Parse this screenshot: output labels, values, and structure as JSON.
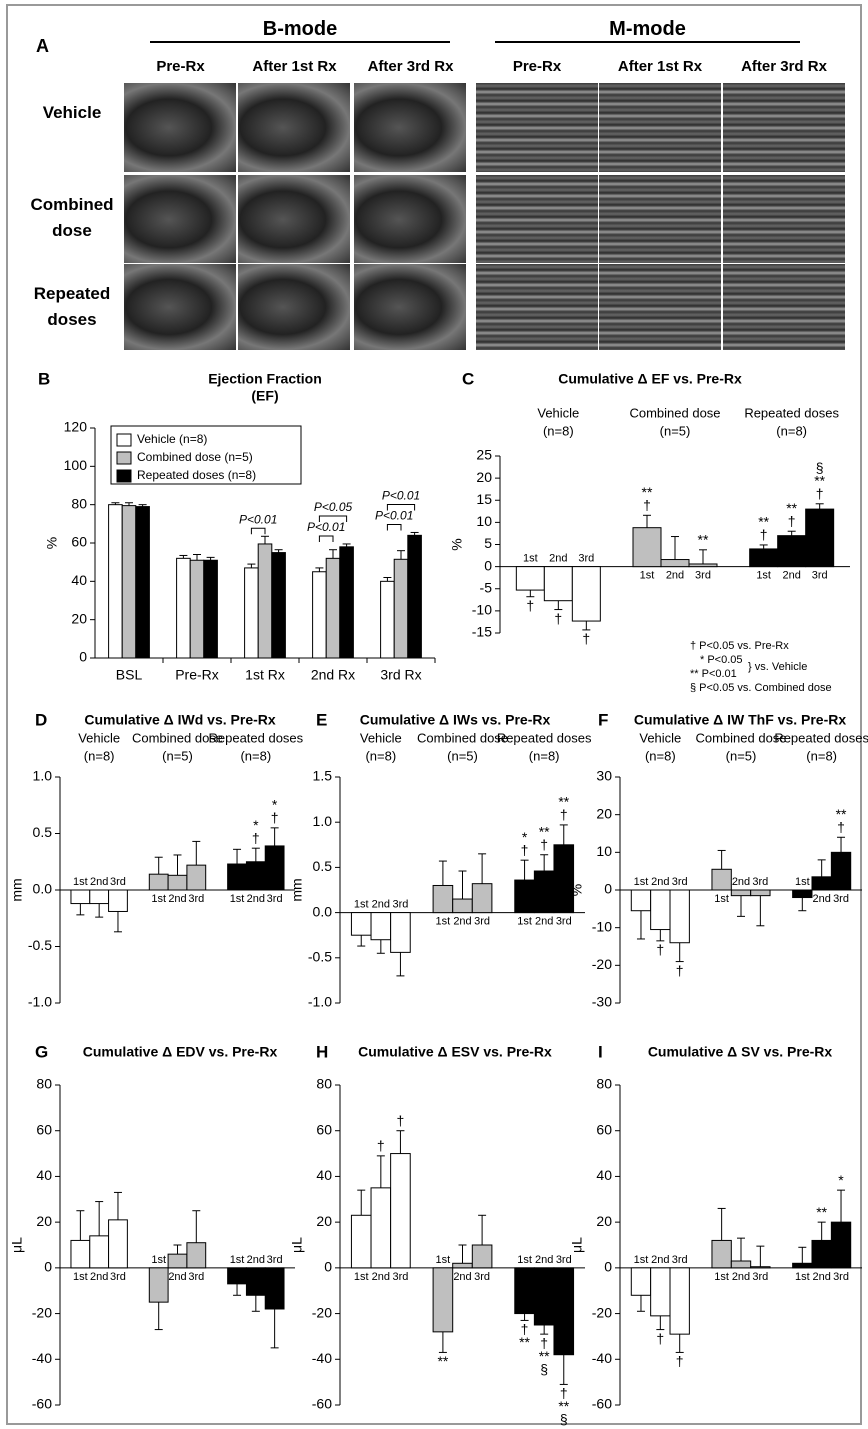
{
  "panel_a": {
    "panel": "A",
    "b_mode": "B-mode",
    "m_mode": "M-mode",
    "columns": [
      "Pre-Rx",
      "After 1st Rx",
      "After 3rd Rx"
    ],
    "rows": [
      "Vehicle",
      "Combined dose",
      "Repeated doses"
    ]
  },
  "chart_data": [
    {
      "type": "bar",
      "panel": "B",
      "title": "Ejection Fraction",
      "subtitle": "(EF)",
      "ylabel": "%",
      "categories": [
        "BSL",
        "Pre-Rx",
        "1st Rx",
        "2nd Rx",
        "3rd Rx"
      ],
      "ylim": [
        0,
        120
      ],
      "yticks": [
        0,
        20,
        40,
        60,
        80,
        100,
        120
      ],
      "legend": "upper left",
      "series": [
        {
          "name": "Vehicle (n=8)",
          "color": "#ffffff",
          "values": [
            80,
            52,
            47,
            45,
            40
          ],
          "errors": [
            1,
            1.5,
            2,
            2,
            2
          ]
        },
        {
          "name": "Combined dose (n=5)",
          "color": "#bfbfbf",
          "values": [
            79.5,
            51,
            59.5,
            52,
            51.5
          ],
          "errors": [
            1.5,
            3,
            4,
            4.5,
            4.5
          ]
        },
        {
          "name": "Repeated doses (n=8)",
          "color": "#000000",
          "values": [
            79,
            51,
            55,
            58,
            64
          ],
          "errors": [
            1,
            1.5,
            1.5,
            1.5,
            1.5
          ]
        }
      ],
      "brackets": [
        [],
        [],
        [
          {
            "label": "P<0.01",
            "series": [
              "Vehicle (n=8)",
              "Combined dose (n=5)"
            ]
          }
        ],
        [
          {
            "label": "P<0.01",
            "series": [
              "Vehicle (n=8)",
              "Combined dose (n=5)"
            ]
          },
          {
            "label": "P<0.05",
            "series": [
              "Vehicle (n=8)",
              "Repeated doses (n=8)"
            ]
          }
        ],
        [
          {
            "label": "P<0.01",
            "series": [
              "Vehicle (n=8)",
              "Combined dose (n=5)"
            ]
          },
          {
            "label": "P<0.01",
            "series": [
              "Vehicle (n=8)",
              "Repeated doses (n=8)"
            ]
          }
        ]
      ]
    },
    {
      "type": "group_bar",
      "panel": "C",
      "title": "Cumulative Δ EF vs. Pre-Rx",
      "ylabel": "%",
      "ylim": [
        -15,
        25
      ],
      "yticks": [
        -15,
        -10,
        -5,
        0,
        5,
        10,
        15,
        20,
        25
      ],
      "bar_labels": [
        "1st",
        "2nd",
        "3rd"
      ],
      "series": [
        {
          "name": "Vehicle",
          "note": "(n=8)",
          "color": "#ffffff",
          "values": [
            -5.3,
            -7.7,
            -12.3
          ],
          "errors": [
            1.5,
            2,
            2
          ],
          "marks": [
            [
              "†"
            ],
            [
              "†"
            ],
            [
              "†"
            ]
          ]
        },
        {
          "name": "Combined dose",
          "note": "(n=5)",
          "color": "#bfbfbf",
          "values": [
            8.8,
            1.6,
            0.6
          ],
          "errors": [
            2.8,
            5.2,
            3.2
          ],
          "marks": [
            [
              "**",
              "†"
            ],
            null,
            [
              "**"
            ]
          ]
        },
        {
          "name": "Repeated doses",
          "note": "(n=8)",
          "color": "#000000",
          "values": [
            4,
            7,
            13
          ],
          "errors": [
            0.9,
            1,
            1.2
          ],
          "marks": [
            [
              "**",
              "†"
            ],
            [
              "**",
              "†"
            ],
            [
              "§",
              "**",
              "†"
            ]
          ]
        }
      ],
      "notes": [
        "† P<0.05 vs. Pre-Rx",
        "* P<0.05",
        "** P<0.01",
        "} vs. Vehicle",
        "§ P<0.05 vs. Combined dose"
      ]
    },
    {
      "type": "group_bar",
      "panel": "D",
      "title": "Cumulative Δ IWd vs. Pre-Rx",
      "ylabel": "mm",
      "ylim": [
        -1,
        1
      ],
      "yticks": [
        {
          "value": -1,
          "label": "-1.0"
        },
        -0.5,
        {
          "value": 0,
          "label": "0.0"
        },
        0.5,
        {
          "value": 1,
          "label": "1.0"
        }
      ],
      "bar_labels": [
        "1st",
        "2nd",
        "3rd"
      ],
      "series": [
        {
          "name": "Vehicle",
          "note": "(n=8)",
          "color": "#ffffff",
          "values": [
            -0.12,
            -0.12,
            -0.19
          ],
          "errors": [
            0.1,
            0.12,
            0.18
          ],
          "marks": [
            null,
            null,
            null
          ]
        },
        {
          "name": "Combined dose",
          "note": "(n=5)",
          "color": "#bfbfbf",
          "values": [
            0.14,
            0.13,
            0.22
          ],
          "errors": [
            0.15,
            0.18,
            0.21
          ],
          "marks": [
            null,
            null,
            null
          ]
        },
        {
          "name": "Repeated doses",
          "note": "(n=8)",
          "color": "#000000",
          "values": [
            0.23,
            0.25,
            0.39
          ],
          "errors": [
            0.13,
            0.12,
            0.16
          ],
          "marks": [
            null,
            [
              "*",
              "†"
            ],
            [
              "*",
              "†"
            ]
          ]
        }
      ]
    },
    {
      "type": "group_bar",
      "panel": "E",
      "title": "Cumulative Δ IWs vs. Pre-Rx",
      "ylabel": "mm",
      "ylim": [
        -1,
        1.5
      ],
      "yticks": [
        {
          "value": -1,
          "label": "-1.0"
        },
        -0.5,
        {
          "value": 0,
          "label": "0.0"
        },
        0.5,
        {
          "value": 1,
          "label": "1.0"
        },
        1.5
      ],
      "bar_labels": [
        "1st",
        "2nd",
        "3rd"
      ],
      "series": [
        {
          "name": "Vehicle",
          "note": "(n=8)",
          "color": "#ffffff",
          "values": [
            -0.25,
            -0.3,
            -0.44
          ],
          "errors": [
            0.12,
            0.15,
            0.26
          ],
          "marks": [
            null,
            null,
            null
          ]
        },
        {
          "name": "Combined dose",
          "note": "(n=5)",
          "color": "#bfbfbf",
          "values": [
            0.3,
            0.15,
            0.32
          ],
          "errors": [
            0.27,
            0.31,
            0.33
          ],
          "marks": [
            null,
            null,
            null
          ]
        },
        {
          "name": "Repeated doses",
          "note": "(n=8)",
          "color": "#000000",
          "values": [
            0.36,
            0.46,
            0.75
          ],
          "errors": [
            0.22,
            0.18,
            0.22
          ],
          "marks": [
            [
              "*",
              "†"
            ],
            [
              "**",
              "†"
            ],
            [
              "**",
              "†"
            ]
          ]
        }
      ]
    },
    {
      "type": "group_bar",
      "panel": "F",
      "title": "Cumulative Δ IW ThF vs. Pre-Rx",
      "ylabel": "%",
      "ylim": [
        -30,
        30
      ],
      "yticks": [
        -30,
        -20,
        -10,
        0,
        10,
        20,
        30
      ],
      "bar_labels": [
        "1st",
        "2nd",
        "3rd"
      ],
      "series": [
        {
          "name": "Vehicle",
          "note": "(n=8)",
          "color": "#ffffff",
          "values": [
            -5.5,
            -10.5,
            -14
          ],
          "errors": [
            7.5,
            3,
            5
          ],
          "marks": [
            null,
            [
              "†"
            ],
            [
              "†"
            ]
          ]
        },
        {
          "name": "Combined dose",
          "note": "(n=5)",
          "color": "#bfbfbf",
          "values": [
            5.5,
            -1.5,
            -1.5
          ],
          "errors": [
            5,
            5.5,
            8
          ],
          "marks": [
            null,
            null,
            null
          ]
        },
        {
          "name": "Repeated doses",
          "note": "(n=8)",
          "color": "#000000",
          "values": [
            -2,
            3.5,
            10
          ],
          "errors": [
            3.5,
            4.5,
            4
          ],
          "marks": [
            null,
            null,
            [
              "**",
              "†"
            ]
          ]
        }
      ]
    },
    {
      "type": "group_bar",
      "panel": "G",
      "title": "Cumulative Δ EDV vs. Pre-Rx",
      "ylabel": "μL",
      "ylim": [
        -60,
        80
      ],
      "yticks": [
        -60,
        -40,
        -20,
        0,
        20,
        40,
        60,
        80
      ],
      "bar_labels": [
        "1st",
        "2nd",
        "3rd"
      ],
      "series": [
        {
          "color": "#ffffff",
          "values": [
            12,
            14,
            21
          ],
          "errors": [
            13,
            15,
            12
          ],
          "marks": [
            null,
            null,
            null
          ]
        },
        {
          "color": "#bfbfbf",
          "values": [
            -15,
            6,
            11
          ],
          "errors": [
            12,
            4,
            14
          ],
          "marks": [
            null,
            null,
            null
          ]
        },
        {
          "color": "#000000",
          "values": [
            -7,
            -12,
            -18
          ],
          "errors": [
            5,
            7,
            17
          ],
          "marks": [
            null,
            null,
            null
          ]
        }
      ]
    },
    {
      "type": "group_bar",
      "panel": "H",
      "title": "Cumulative Δ ESV  vs. Pre-Rx",
      "ylabel": "μL",
      "ylim": [
        -60,
        80
      ],
      "yticks": [
        -60,
        -40,
        -20,
        0,
        20,
        40,
        60,
        80
      ],
      "bar_labels": [
        "1st",
        "2nd",
        "3rd"
      ],
      "series": [
        {
          "color": "#ffffff",
          "values": [
            23,
            35,
            50
          ],
          "errors": [
            11,
            14,
            10
          ],
          "marks": [
            null,
            [
              "†"
            ],
            [
              "†"
            ]
          ]
        },
        {
          "color": "#bfbfbf",
          "values": [
            -28,
            2,
            10
          ],
          "errors": [
            9,
            8,
            13
          ],
          "marks": [
            [
              "**"
            ],
            null,
            null
          ]
        },
        {
          "color": "#000000",
          "values": [
            -20,
            -25,
            -38
          ],
          "errors": [
            3,
            4,
            13
          ],
          "marks": [
            [
              "†",
              "**"
            ],
            [
              "†",
              "**",
              "§"
            ],
            [
              "†",
              "**",
              "§"
            ]
          ]
        }
      ]
    },
    {
      "type": "group_bar",
      "panel": "I",
      "title": "Cumulative Δ SV  vs. Pre-Rx",
      "ylabel": "μL",
      "ylim": [
        -60,
        80
      ],
      "yticks": [
        -60,
        -40,
        -20,
        0,
        20,
        40,
        60,
        80
      ],
      "bar_labels": [
        "1st",
        "2nd",
        "3rd"
      ],
      "series": [
        {
          "color": "#ffffff",
          "values": [
            -12,
            -21,
            -29
          ],
          "errors": [
            7,
            6,
            8
          ],
          "marks": [
            null,
            [
              "†"
            ],
            [
              "†"
            ]
          ]
        },
        {
          "color": "#bfbfbf",
          "values": [
            12,
            3,
            0.5
          ],
          "errors": [
            14,
            10,
            9
          ],
          "marks": [
            null,
            null,
            null
          ]
        },
        {
          "color": "#000000",
          "values": [
            2,
            12,
            20
          ],
          "errors": [
            7,
            8,
            14
          ],
          "marks": [
            null,
            [
              "**"
            ],
            [
              "*"
            ]
          ]
        }
      ]
    }
  ]
}
